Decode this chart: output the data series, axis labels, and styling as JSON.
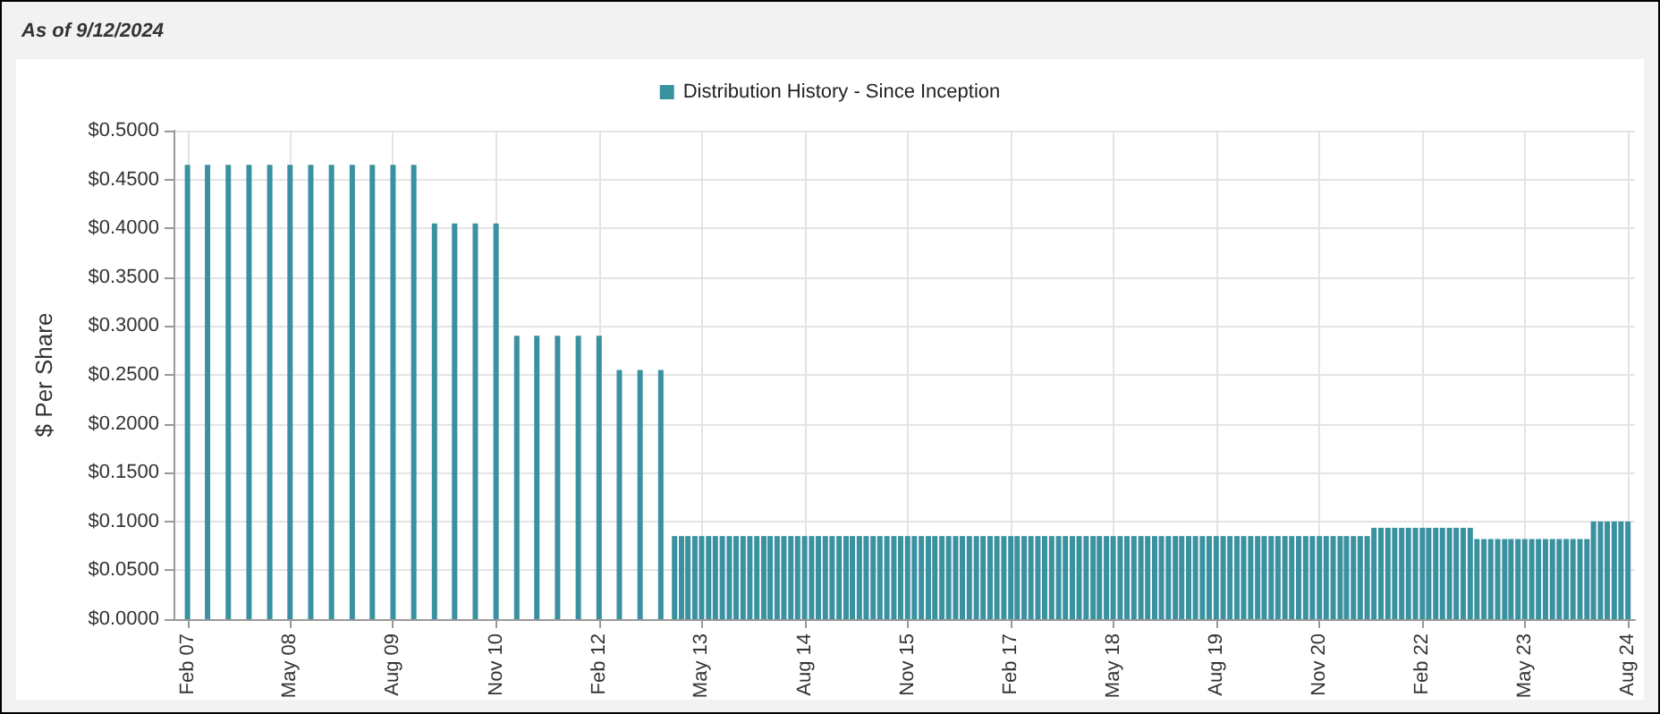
{
  "chart_data": {
    "type": "bar",
    "title": "As of 9/12/2024",
    "ylabel": "$ Per Share",
    "legend": "top",
    "grid": true,
    "x": [
      "2007-02",
      "2007-05",
      "2007-08",
      "2007-11",
      "2008-02",
      "2008-05",
      "2008-08",
      "2008-11",
      "2009-02",
      "2009-05",
      "2009-08",
      "2009-11",
      "2010-02",
      "2010-05",
      "2010-08",
      "2010-11",
      "2011-02",
      "2011-05",
      "2011-08",
      "2011-11",
      "2012-02",
      "2012-05",
      "2012-08",
      "2012-11",
      "2013-01",
      "2013-02",
      "2013-03",
      "2013-04",
      "2013-05",
      "2013-06",
      "2013-07",
      "2013-08",
      "2013-09",
      "2013-10",
      "2013-11",
      "2013-12",
      "2014-01",
      "2014-02",
      "2014-03",
      "2014-04",
      "2014-05",
      "2014-06",
      "2014-07",
      "2014-08",
      "2014-09",
      "2014-10",
      "2014-11",
      "2014-12",
      "2015-01",
      "2015-02",
      "2015-03",
      "2015-04",
      "2015-05",
      "2015-06",
      "2015-07",
      "2015-08",
      "2015-09",
      "2015-10",
      "2015-11",
      "2015-12",
      "2016-01",
      "2016-02",
      "2016-03",
      "2016-04",
      "2016-05",
      "2016-06",
      "2016-07",
      "2016-08",
      "2016-09",
      "2016-10",
      "2016-11",
      "2016-12",
      "2017-01",
      "2017-02",
      "2017-03",
      "2017-04",
      "2017-05",
      "2017-06",
      "2017-07",
      "2017-08",
      "2017-09",
      "2017-10",
      "2017-11",
      "2017-12",
      "2018-01",
      "2018-02",
      "2018-03",
      "2018-04",
      "2018-05",
      "2018-06",
      "2018-07",
      "2018-08",
      "2018-09",
      "2018-10",
      "2018-11",
      "2018-12",
      "2019-01",
      "2019-02",
      "2019-03",
      "2019-04",
      "2019-05",
      "2019-06",
      "2019-07",
      "2019-08",
      "2019-09",
      "2019-10",
      "2019-11",
      "2019-12",
      "2020-01",
      "2020-02",
      "2020-03",
      "2020-04",
      "2020-05",
      "2020-06",
      "2020-07",
      "2020-08",
      "2020-09",
      "2020-10",
      "2020-11",
      "2020-12",
      "2021-01",
      "2021-02",
      "2021-03",
      "2021-04",
      "2021-05",
      "2021-06",
      "2021-07",
      "2021-08",
      "2021-09",
      "2021-10",
      "2021-11",
      "2021-12",
      "2022-01",
      "2022-02",
      "2022-03",
      "2022-04",
      "2022-05",
      "2022-06",
      "2022-07",
      "2022-08",
      "2022-09",
      "2022-10",
      "2022-11",
      "2022-12",
      "2023-01",
      "2023-02",
      "2023-03",
      "2023-04",
      "2023-05",
      "2023-06",
      "2023-07",
      "2023-08",
      "2023-09",
      "2023-10",
      "2023-11",
      "2023-12",
      "2024-01",
      "2024-02",
      "2024-03",
      "2024-04",
      "2024-05",
      "2024-06",
      "2024-07",
      "2024-08"
    ],
    "series": [
      {
        "name": "Distribution History - Since Inception",
        "color": "#3a919f",
        "values": [
          0.465,
          0.465,
          0.465,
          0.465,
          0.465,
          0.465,
          0.465,
          0.465,
          0.465,
          0.465,
          0.465,
          0.465,
          0.405,
          0.405,
          0.405,
          0.405,
          0.29,
          0.29,
          0.29,
          0.29,
          0.29,
          0.255,
          0.255,
          0.255,
          0.085,
          0.085,
          0.085,
          0.085,
          0.085,
          0.085,
          0.085,
          0.085,
          0.085,
          0.085,
          0.085,
          0.085,
          0.085,
          0.085,
          0.085,
          0.085,
          0.085,
          0.085,
          0.085,
          0.085,
          0.085,
          0.085,
          0.085,
          0.085,
          0.085,
          0.085,
          0.085,
          0.085,
          0.085,
          0.085,
          0.085,
          0.085,
          0.085,
          0.085,
          0.085,
          0.085,
          0.085,
          0.085,
          0.085,
          0.085,
          0.085,
          0.085,
          0.085,
          0.085,
          0.085,
          0.085,
          0.085,
          0.085,
          0.085,
          0.085,
          0.085,
          0.085,
          0.085,
          0.085,
          0.085,
          0.085,
          0.085,
          0.085,
          0.085,
          0.085,
          0.085,
          0.085,
          0.085,
          0.085,
          0.085,
          0.085,
          0.085,
          0.085,
          0.085,
          0.085,
          0.085,
          0.085,
          0.085,
          0.085,
          0.085,
          0.085,
          0.085,
          0.085,
          0.085,
          0.085,
          0.085,
          0.085,
          0.085,
          0.085,
          0.085,
          0.085,
          0.085,
          0.085,
          0.085,
          0.085,
          0.085,
          0.085,
          0.085,
          0.085,
          0.085,
          0.085,
          0.085,
          0.085,
          0.085,
          0.085,
          0.085,
          0.085,
          0.0935,
          0.0935,
          0.0935,
          0.0935,
          0.0935,
          0.0935,
          0.0935,
          0.0935,
          0.0935,
          0.0935,
          0.0935,
          0.0935,
          0.0935,
          0.0935,
          0.0935,
          0.082,
          0.082,
          0.082,
          0.082,
          0.082,
          0.082,
          0.082,
          0.082,
          0.082,
          0.082,
          0.082,
          0.082,
          0.082,
          0.082,
          0.082,
          0.082,
          0.082,
          0.1,
          0.1,
          0.1,
          0.1,
          0.1,
          0.1
        ]
      }
    ],
    "xlim": [
      "2006-12",
      "2024-09"
    ],
    "xticks": [
      {
        "value": "2007-02",
        "label": "Feb 07"
      },
      {
        "value": "2008-05",
        "label": "May 08"
      },
      {
        "value": "2009-08",
        "label": "Aug 09"
      },
      {
        "value": "2010-11",
        "label": "Nov 10"
      },
      {
        "value": "2012-02",
        "label": "Feb 12"
      },
      {
        "value": "2013-05",
        "label": "May 13"
      },
      {
        "value": "2014-08",
        "label": "Aug 14"
      },
      {
        "value": "2015-11",
        "label": "Nov 15"
      },
      {
        "value": "2017-02",
        "label": "Feb 17"
      },
      {
        "value": "2018-05",
        "label": "May 18"
      },
      {
        "value": "2019-08",
        "label": "Aug 19"
      },
      {
        "value": "2020-11",
        "label": "Nov 20"
      },
      {
        "value": "2022-02",
        "label": "Feb 22"
      },
      {
        "value": "2023-05",
        "label": "May 23"
      },
      {
        "value": "2024-08",
        "label": "Aug 24"
      }
    ],
    "ylim": [
      0,
      0.5
    ],
    "yticks": [
      {
        "value": 0,
        "label": "$0.0000"
      },
      {
        "value": 0.05,
        "label": "$0.0500"
      },
      {
        "value": 0.1,
        "label": "$0.1000"
      },
      {
        "value": 0.15,
        "label": "$0.1500"
      },
      {
        "value": 0.2,
        "label": "$0.2000"
      },
      {
        "value": 0.25,
        "label": "$0.2500"
      },
      {
        "value": 0.3,
        "label": "$0.3000"
      },
      {
        "value": 0.35,
        "label": "$0.3500"
      },
      {
        "value": 0.4,
        "label": "$0.4000"
      },
      {
        "value": 0.45,
        "label": "$0.4500"
      },
      {
        "value": 0.5,
        "label": "$0.5000"
      }
    ]
  }
}
